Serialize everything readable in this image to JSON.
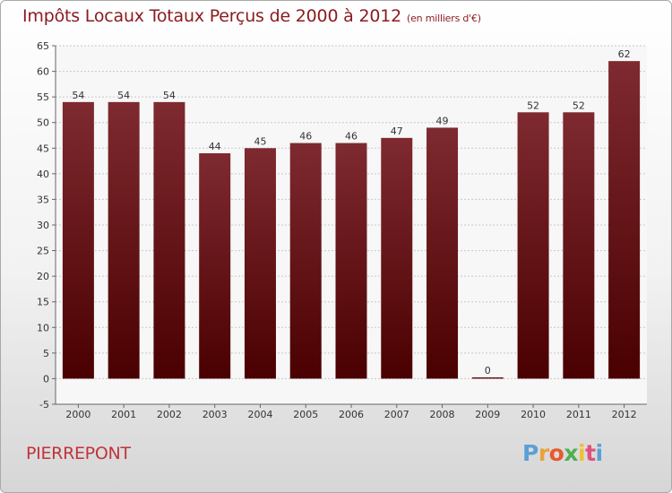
{
  "header": {
    "title": "Impôts Locaux Totaux Perçus de 2000 à 2012",
    "unit": "(en milliers d'€)"
  },
  "footer": {
    "town": "PIERREPONT",
    "logo_letters": [
      "P",
      "r",
      "o",
      "x",
      "i",
      "t",
      "i"
    ],
    "logo_colors": [
      "#5aa0d8",
      "#e8a33a",
      "#e85a2c",
      "#4caf50",
      "#f0c030",
      "#e05080",
      "#5aa0d8"
    ]
  },
  "chart_data": {
    "type": "bar",
    "title": "Impôts Locaux Totaux Perçus de 2000 à 2012",
    "subtitle": "(en milliers d'€)",
    "xlabel": "",
    "ylabel": "",
    "categories": [
      "2000",
      "2001",
      "2002",
      "2003",
      "2004",
      "2005",
      "2006",
      "2007",
      "2008",
      "2009",
      "2010",
      "2011",
      "2012"
    ],
    "values": [
      54,
      54,
      54,
      44,
      45,
      46,
      46,
      47,
      49,
      0,
      52,
      52,
      62
    ],
    "ylim": [
      -5,
      65
    ],
    "yticks": [
      -5,
      0,
      5,
      10,
      15,
      20,
      25,
      30,
      35,
      40,
      45,
      50,
      55,
      60,
      65
    ],
    "grid": true,
    "bar_color_top": "#7e2a30",
    "bar_color_bottom": "#4a0000"
  }
}
